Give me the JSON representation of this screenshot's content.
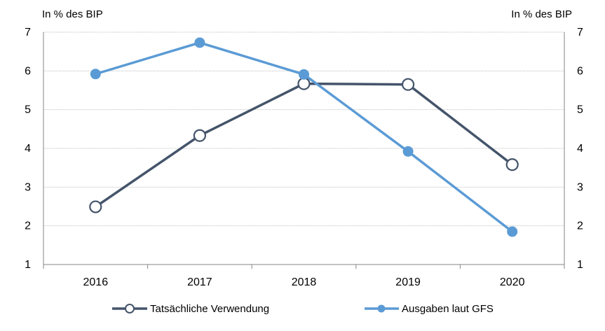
{
  "chart_data": {
    "type": "line",
    "categories": [
      "2016",
      "2017",
      "2018",
      "2019",
      "2020"
    ],
    "y_left_label": "In % des BIP",
    "y_right_label": "In % des BIP",
    "ylim": [
      1,
      7
    ],
    "yticks": [
      1,
      2,
      3,
      4,
      5,
      6,
      7
    ],
    "grid": true,
    "legend_position": "bottom",
    "series": [
      {
        "name": "Tatsächliche Verwendung",
        "values": [
          2.49,
          4.33,
          5.67,
          5.65,
          3.58
        ],
        "color": "#44546a",
        "marker": "hollow-circle"
      },
      {
        "name": "Ausgaben laut GFS",
        "values": [
          5.92,
          6.73,
          5.91,
          3.92,
          1.85
        ],
        "color": "#5b9bd5",
        "marker": "filled-circle"
      }
    ]
  }
}
